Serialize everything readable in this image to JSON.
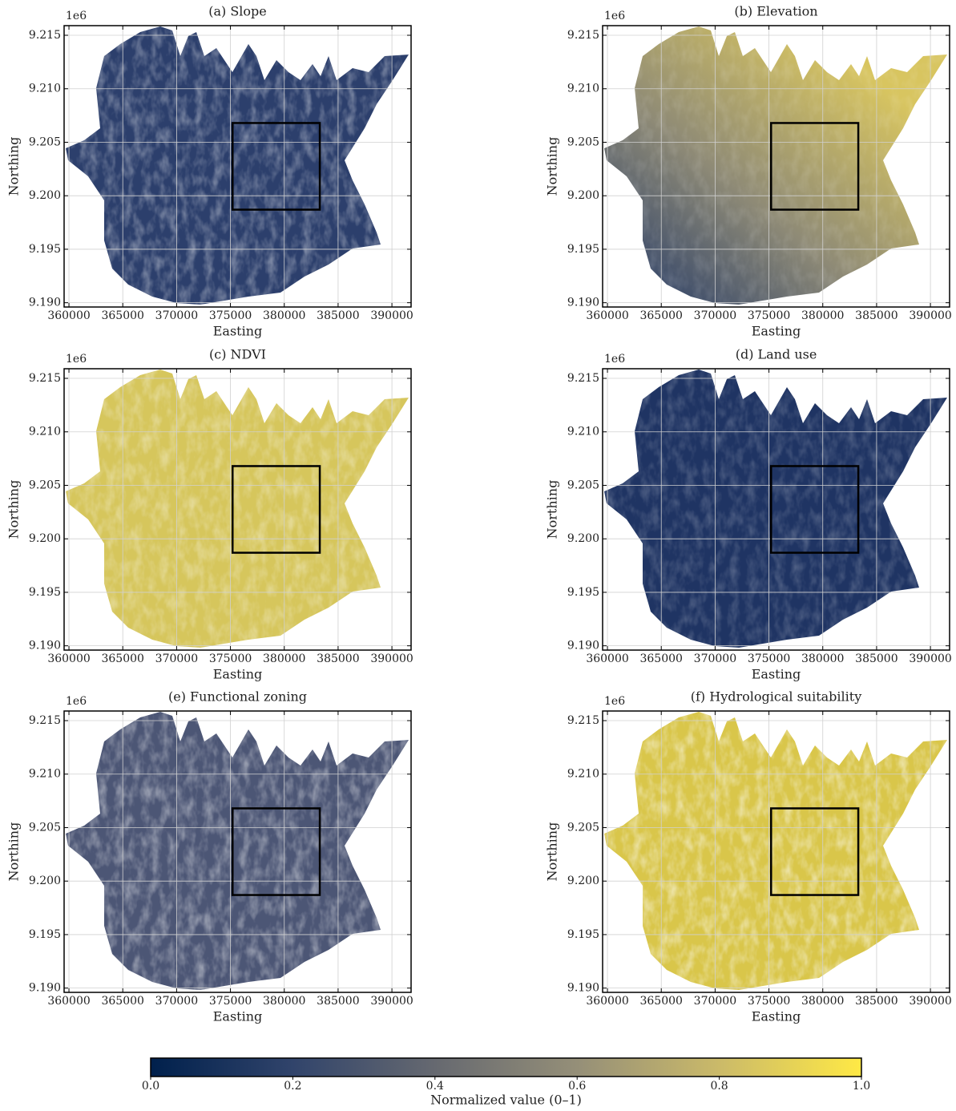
{
  "chart_data": [
    {
      "type": "map",
      "title": "(a) Slope",
      "xlabel": "Easting",
      "ylabel": "Northing",
      "offset_label": "1e6",
      "xlim": [
        359550,
        391780
      ],
      "ylim": [
        9.1896,
        9.2159
      ],
      "xticks": [
        360000,
        365000,
        370000,
        375000,
        380000,
        385000,
        390000
      ],
      "yticks": [
        {
          "value": 9.19,
          "label": "9.190"
        },
        {
          "value": 9.195,
          "label": "9.195"
        },
        {
          "value": 9.2,
          "label": "9.200"
        },
        {
          "value": 9.205,
          "label": "9.205"
        },
        {
          "value": 9.21,
          "label": "9.210"
        },
        {
          "value": 9.215,
          "label": "9.215"
        }
      ],
      "box": {
        "x": [
          375200,
          383300
        ],
        "y": [
          9.1987,
          9.2068
        ]
      },
      "grid": true
    },
    {
      "type": "map",
      "title": "(b) Elevation",
      "xlabel": "Easting",
      "ylabel": "Northing",
      "offset_label": "1e6",
      "xlim": [
        359550,
        391780
      ],
      "ylim": [
        9.1896,
        9.2159
      ],
      "xticks": [
        360000,
        365000,
        370000,
        375000,
        380000,
        385000,
        390000
      ],
      "yticks": [
        {
          "value": 9.19,
          "label": "9.190"
        },
        {
          "value": 9.195,
          "label": "9.195"
        },
        {
          "value": 9.2,
          "label": "9.200"
        },
        {
          "value": 9.205,
          "label": "9.205"
        },
        {
          "value": 9.21,
          "label": "9.210"
        },
        {
          "value": 9.215,
          "label": "9.215"
        }
      ],
      "box": {
        "x": [
          375200,
          383300
        ],
        "y": [
          9.1987,
          9.2068
        ]
      },
      "grid": true
    },
    {
      "type": "map",
      "title": "(c) NDVI",
      "xlabel": "Easting",
      "ylabel": "Northing",
      "offset_label": "1e6",
      "xlim": [
        359550,
        391780
      ],
      "ylim": [
        9.1896,
        9.2159
      ],
      "xticks": [
        360000,
        365000,
        370000,
        375000,
        380000,
        385000,
        390000
      ],
      "yticks": [
        {
          "value": 9.19,
          "label": "9.190"
        },
        {
          "value": 9.195,
          "label": "9.195"
        },
        {
          "value": 9.2,
          "label": "9.200"
        },
        {
          "value": 9.205,
          "label": "9.205"
        },
        {
          "value": 9.21,
          "label": "9.210"
        },
        {
          "value": 9.215,
          "label": "9.215"
        }
      ],
      "box": {
        "x": [
          375200,
          383300
        ],
        "y": [
          9.1987,
          9.2068
        ]
      },
      "grid": true
    },
    {
      "type": "map",
      "title": "(d) Land use",
      "xlabel": "Easting",
      "ylabel": "Northing",
      "offset_label": "1e6",
      "xlim": [
        359550,
        391780
      ],
      "ylim": [
        9.1896,
        9.2159
      ],
      "xticks": [
        360000,
        365000,
        370000,
        375000,
        380000,
        385000,
        390000
      ],
      "yticks": [
        {
          "value": 9.19,
          "label": "9.190"
        },
        {
          "value": 9.195,
          "label": "9.195"
        },
        {
          "value": 9.2,
          "label": "9.200"
        },
        {
          "value": 9.205,
          "label": "9.205"
        },
        {
          "value": 9.21,
          "label": "9.210"
        },
        {
          "value": 9.215,
          "label": "9.215"
        }
      ],
      "box": {
        "x": [
          375200,
          383300
        ],
        "y": [
          9.1987,
          9.2068
        ]
      },
      "grid": true
    },
    {
      "type": "map",
      "title": "(e) Functional zoning",
      "xlabel": "Easting",
      "ylabel": "Northing",
      "offset_label": "1e6",
      "xlim": [
        359550,
        391780
      ],
      "ylim": [
        9.1896,
        9.2159
      ],
      "xticks": [
        360000,
        365000,
        370000,
        375000,
        380000,
        385000,
        390000
      ],
      "yticks": [
        {
          "value": 9.19,
          "label": "9.190"
        },
        {
          "value": 9.195,
          "label": "9.195"
        },
        {
          "value": 9.2,
          "label": "9.200"
        },
        {
          "value": 9.205,
          "label": "9.205"
        },
        {
          "value": 9.21,
          "label": "9.210"
        },
        {
          "value": 9.215,
          "label": "9.215"
        }
      ],
      "box": {
        "x": [
          375200,
          383300
        ],
        "y": [
          9.1987,
          9.2068
        ]
      },
      "grid": true
    },
    {
      "type": "map",
      "title": "(f) Hydrological suitability",
      "xlabel": "Easting",
      "ylabel": "Northing",
      "offset_label": "1e6",
      "xlim": [
        359550,
        391780
      ],
      "ylim": [
        9.1896,
        9.2159
      ],
      "xticks": [
        360000,
        365000,
        370000,
        375000,
        380000,
        385000,
        390000
      ],
      "yticks": [
        {
          "value": 9.19,
          "label": "9.190"
        },
        {
          "value": 9.195,
          "label": "9.195"
        },
        {
          "value": 9.2,
          "label": "9.200"
        },
        {
          "value": 9.205,
          "label": "9.205"
        },
        {
          "value": 9.21,
          "label": "9.210"
        },
        {
          "value": 9.215,
          "label": "9.215"
        }
      ],
      "box": {
        "x": [
          375200,
          383300
        ],
        "y": [
          9.1987,
          9.2068
        ]
      },
      "grid": true
    },
    {
      "type": "colorbar",
      "xlabel": "Normalized value (0–1)",
      "xlim": [
        0,
        1
      ],
      "xticks": [
        {
          "value": 0,
          "label": "0.0"
        },
        0.2,
        0.4,
        0.6,
        0.8,
        {
          "value": 1,
          "label": "1.0"
        }
      ],
      "colors": [
        "#00204c",
        "#31446b",
        "#666970",
        "#958f78",
        "#cbba69",
        "#ffe945"
      ]
    }
  ]
}
